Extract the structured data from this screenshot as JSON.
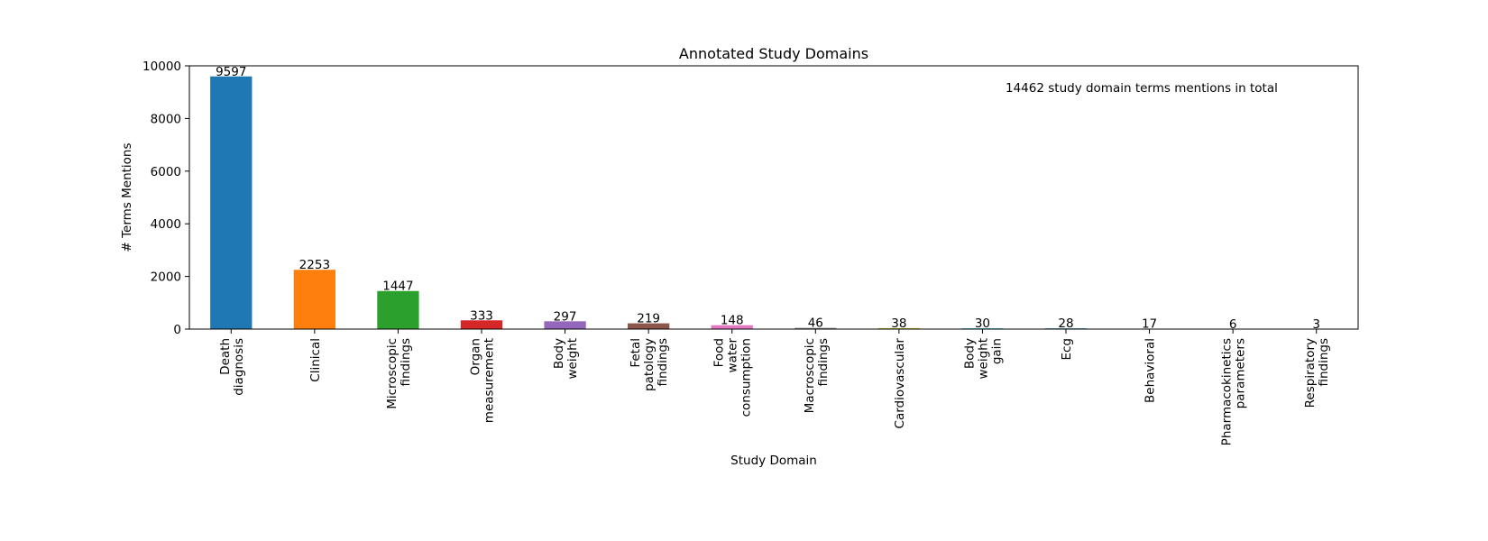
{
  "chart_data": {
    "type": "bar",
    "title": "Annotated Study Domains",
    "xlabel": "Study Domain",
    "ylabel": "# Terms Mentions",
    "annotation": "14462 study domain terms mentions in total",
    "ylim": [
      0,
      10000
    ],
    "yticks": [
      0,
      2000,
      4000,
      6000,
      8000,
      10000
    ],
    "grid": false,
    "legend": "none",
    "categories": [
      [
        "Death",
        "diagnosis"
      ],
      [
        "Clinical"
      ],
      [
        "Microscopic",
        "findings"
      ],
      [
        "Organ",
        "measurement"
      ],
      [
        "Body",
        "weight"
      ],
      [
        "Fetal",
        "patology",
        "findings"
      ],
      [
        "Food",
        "water",
        "consumption"
      ],
      [
        "Macroscopic",
        "findings"
      ],
      [
        "Cardiovascular"
      ],
      [
        "Body",
        "weight",
        "gain"
      ],
      [
        "Ecg"
      ],
      [
        "Behavioral"
      ],
      [
        "Pharmacokinetics",
        "parameters"
      ],
      [
        "Respiratory",
        "findings"
      ]
    ],
    "values": [
      9597,
      2253,
      1447,
      333,
      297,
      219,
      148,
      46,
      38,
      30,
      28,
      17,
      6,
      3
    ],
    "colors": [
      "#1f77b4",
      "#ff7f0e",
      "#2ca02c",
      "#d62728",
      "#9467bd",
      "#8c564b",
      "#e377c2",
      "#7f7f7f",
      "#bcbd22",
      "#17becf",
      "#1f77b4",
      "#ff7f0e",
      "#2ca02c",
      "#d62728"
    ]
  }
}
